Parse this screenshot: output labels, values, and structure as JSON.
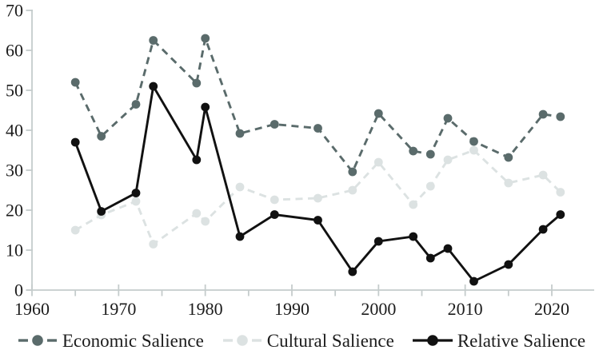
{
  "figure": {
    "background_color": "#ffffff",
    "text_color": "#1c1c1c",
    "axis_color": "#c5cccc"
  },
  "axes": {
    "y_tick_labels": [
      "0",
      "10",
      "20",
      "30",
      "40",
      "50",
      "60",
      "70"
    ],
    "x_tick_labels": [
      "1960",
      "1970",
      "1980",
      "1990",
      "2000",
      "2010",
      "2020"
    ]
  },
  "legend": {
    "items": [
      {
        "label": "Economic Salience"
      },
      {
        "label": "Cultural Salience"
      },
      {
        "label": "Relative Salience"
      }
    ]
  },
  "chart_data": {
    "type": "line",
    "x": [
      1965,
      1968,
      1972,
      1974,
      1979,
      1980,
      1984,
      1988,
      1993,
      1997,
      2000,
      2004,
      2006,
      2008,
      2011,
      2015,
      2019,
      2021
    ],
    "series": [
      {
        "name": "Economic Salience",
        "color": "#5a6b6b",
        "line_style": "dashed",
        "marker": "circle",
        "values": [
          52.0,
          38.5,
          46.5,
          62.5,
          51.8,
          63.0,
          39.2,
          41.5,
          40.5,
          29.6,
          44.2,
          34.8,
          34.0,
          43.0,
          37.2,
          33.2,
          44.0,
          43.4
        ]
      },
      {
        "name": "Cultural Salience",
        "color": "#dce2e2",
        "line_style": "dashed",
        "marker": "circle",
        "values": [
          15.0,
          18.8,
          22.2,
          11.5,
          19.2,
          17.2,
          25.8,
          22.6,
          23.0,
          25.0,
          32.0,
          21.4,
          26.0,
          32.6,
          35.0,
          26.8,
          28.8,
          24.5
        ]
      },
      {
        "name": "Relative Salience",
        "color": "#111111",
        "line_style": "solid",
        "marker": "circle",
        "values": [
          37.0,
          19.7,
          24.3,
          51.0,
          32.6,
          45.8,
          13.4,
          18.9,
          17.5,
          4.6,
          12.2,
          13.4,
          8.0,
          10.4,
          2.2,
          6.4,
          15.2,
          18.9
        ]
      }
    ],
    "title": "",
    "xlabel": "",
    "ylabel": "",
    "xlim": [
      1960,
      2025
    ],
    "ylim": [
      0,
      70
    ],
    "x_ticks_major": [
      1960,
      1970,
      1980,
      1990,
      2000,
      2010,
      2020
    ],
    "x_ticks_minor": [
      1965,
      1975,
      1985,
      1995,
      2005,
      2015
    ],
    "y_ticks": [
      0,
      10,
      20,
      30,
      40,
      50,
      60,
      70
    ],
    "grid": false,
    "legend_position": "bottom"
  }
}
